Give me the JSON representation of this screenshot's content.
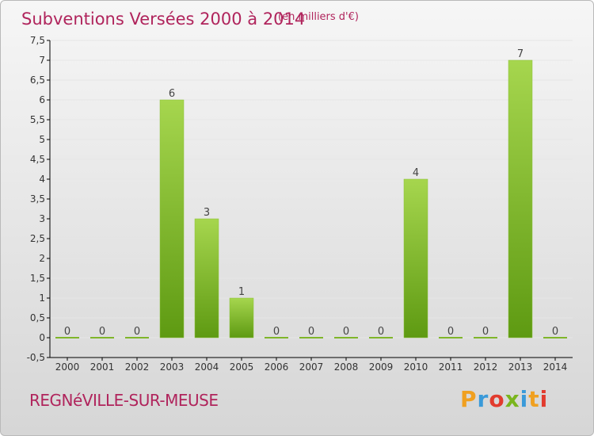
{
  "header": {
    "title": "Subventions Versées 2000 à 2014",
    "unit_note": "(en milliers d'€)"
  },
  "footer": {
    "commune": "REGNéVILLE-SUR-MEUSE",
    "brand": "Proxiti"
  },
  "colors": {
    "title": "#b0245c",
    "bar_light": "#a6d64e",
    "bar_dark": "#5e9a12",
    "axis": "#000000",
    "grid": "#e8e8e8"
  },
  "chart_data": {
    "type": "bar",
    "title": "Subventions Versées 2000 à 2014",
    "subtitle": "(en milliers d'€)",
    "xlabel": "",
    "ylabel": "",
    "categories": [
      "2000",
      "2001",
      "2002",
      "2003",
      "2004",
      "2005",
      "2006",
      "2007",
      "2008",
      "2009",
      "2010",
      "2011",
      "2012",
      "2013",
      "2014"
    ],
    "values": [
      0,
      0,
      0,
      6,
      3,
      1,
      0,
      0,
      0,
      0,
      4,
      0,
      0,
      7,
      0
    ],
    "ylim": [
      -0.5,
      7.5
    ],
    "yticks": [
      "-0,5",
      "0",
      "0,5",
      "1",
      "1,5",
      "2",
      "2,5",
      "3",
      "3,5",
      "4",
      "4,5",
      "5",
      "5,5",
      "6",
      "6,5",
      "7",
      "7,5"
    ],
    "grid": true,
    "legend": "none"
  }
}
